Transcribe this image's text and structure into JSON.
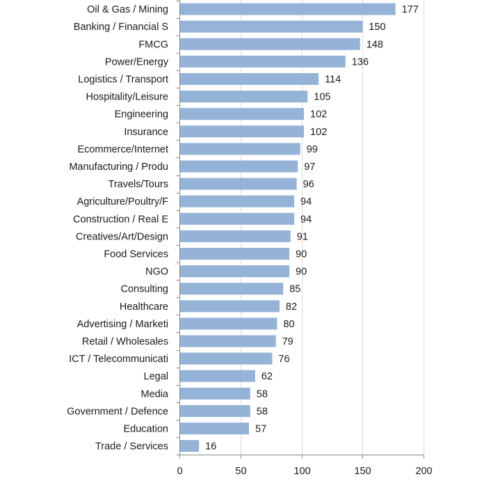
{
  "chart_data": {
    "type": "bar",
    "orientation": "horizontal",
    "categories": [
      "Oil & Gas / Mining",
      "Banking / Financial S",
      "FMCG",
      "Power/Energy",
      "Logistics / Transport",
      "Hospitality/Leisure",
      "Engineering",
      "Insurance",
      "Ecommerce/Internet",
      "Manufacturing / Produ",
      "Travels/Tours",
      "Agriculture/Poultry/F",
      "Construction / Real E",
      "Creatives/Art/Design",
      "Food Services",
      "NGO",
      "Consulting",
      "Healthcare",
      "Advertising / Marketi",
      "Retail / Wholesales",
      "ICT / Telecommunicati",
      "Legal",
      "Media",
      "Government / Defence",
      "Education",
      "Trade / Services"
    ],
    "values": [
      177,
      150,
      148,
      136,
      114,
      105,
      102,
      102,
      99,
      97,
      96,
      94,
      94,
      91,
      90,
      90,
      85,
      82,
      80,
      79,
      76,
      62,
      58,
      58,
      57,
      16
    ],
    "title": "",
    "xlabel": "",
    "ylabel": "",
    "xlim": [
      0,
      200
    ],
    "xticks": [
      0,
      50,
      100,
      150,
      200
    ],
    "grid": true,
    "legend": "none",
    "bar_color": "#95b3d7",
    "data_labels": true
  }
}
